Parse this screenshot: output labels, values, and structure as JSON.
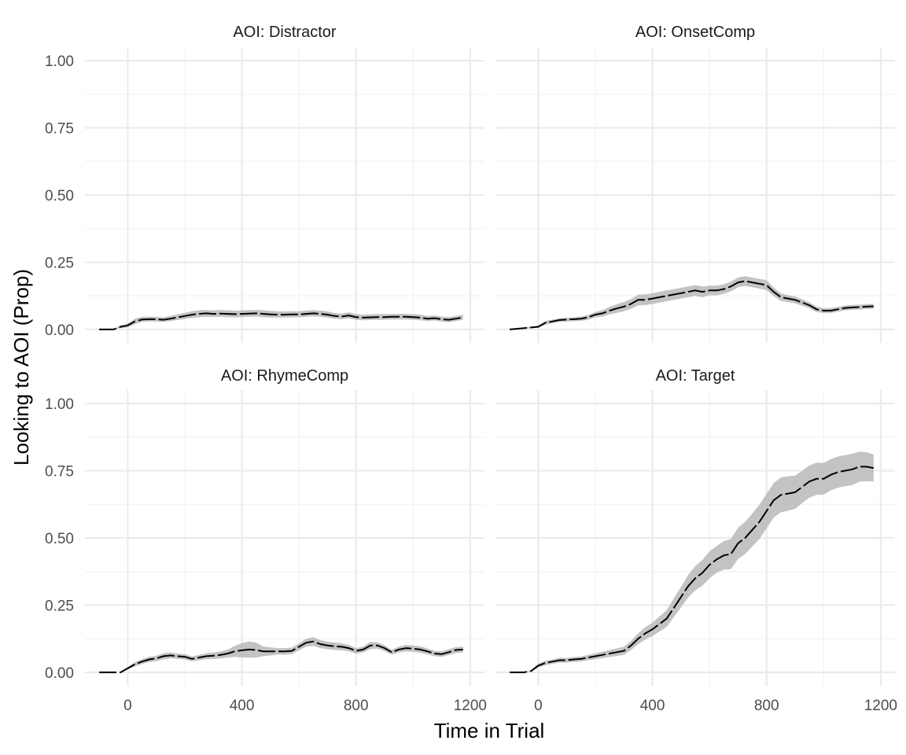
{
  "chart_data": {
    "type": "line",
    "xlabel": "Time in Trial",
    "ylabel": "Looking to AOI (Prop)",
    "xlim": [
      -100,
      1200
    ],
    "ylim": [
      0,
      1
    ],
    "x_ticks": [
      "0",
      "400",
      "800",
      "1200"
    ],
    "y_ticks": [
      "0.00",
      "0.25",
      "0.50",
      "0.75",
      "1.00"
    ],
    "grid": true,
    "ribbon": "confidence band (grey)",
    "colors": {
      "line": "#000000",
      "ribbon": "#bdbdbd",
      "grid": "#ebebeb"
    },
    "panels": [
      {
        "strip": "AOI:  Distractor",
        "x": [
          -100,
          -50,
          -25,
          0,
          25,
          50,
          75,
          100,
          125,
          150,
          175,
          200,
          225,
          250,
          275,
          300,
          325,
          350,
          375,
          400,
          425,
          450,
          475,
          500,
          525,
          550,
          575,
          600,
          625,
          650,
          675,
          700,
          725,
          750,
          775,
          800,
          825,
          850,
          875,
          900,
          925,
          950,
          975,
          1000,
          1025,
          1050,
          1075,
          1100,
          1125,
          1150,
          1175
        ],
        "y": [
          0,
          0,
          0.01,
          0.015,
          0.03,
          0.037,
          0.038,
          0.038,
          0.036,
          0.04,
          0.045,
          0.05,
          0.055,
          0.058,
          0.06,
          0.058,
          0.059,
          0.058,
          0.057,
          0.058,
          0.059,
          0.06,
          0.058,
          0.056,
          0.055,
          0.055,
          0.056,
          0.056,
          0.058,
          0.06,
          0.058,
          0.055,
          0.05,
          0.048,
          0.052,
          0.046,
          0.044,
          0.045,
          0.046,
          0.046,
          0.047,
          0.047,
          0.047,
          0.046,
          0.044,
          0.04,
          0.042,
          0.038,
          0.036,
          0.04,
          0.045
        ],
        "lower": [
          0,
          0,
          0.005,
          0.008,
          0.02,
          0.028,
          0.03,
          0.03,
          0.028,
          0.031,
          0.035,
          0.039,
          0.043,
          0.045,
          0.047,
          0.046,
          0.047,
          0.046,
          0.045,
          0.046,
          0.047,
          0.048,
          0.046,
          0.044,
          0.044,
          0.044,
          0.045,
          0.045,
          0.047,
          0.049,
          0.047,
          0.044,
          0.04,
          0.038,
          0.041,
          0.036,
          0.034,
          0.035,
          0.036,
          0.036,
          0.037,
          0.037,
          0.037,
          0.036,
          0.034,
          0.031,
          0.033,
          0.029,
          0.027,
          0.031,
          0.036
        ],
        "upper": [
          0,
          0,
          0.015,
          0.022,
          0.04,
          0.047,
          0.047,
          0.047,
          0.045,
          0.05,
          0.056,
          0.062,
          0.068,
          0.071,
          0.073,
          0.071,
          0.072,
          0.071,
          0.07,
          0.071,
          0.072,
          0.073,
          0.071,
          0.069,
          0.067,
          0.067,
          0.068,
          0.068,
          0.07,
          0.072,
          0.07,
          0.067,
          0.061,
          0.059,
          0.064,
          0.057,
          0.055,
          0.056,
          0.057,
          0.057,
          0.058,
          0.058,
          0.058,
          0.057,
          0.055,
          0.05,
          0.052,
          0.048,
          0.046,
          0.05,
          0.055
        ]
      },
      {
        "strip": "AOI:  OnsetComp",
        "x": [
          -100,
          -50,
          0,
          25,
          50,
          75,
          100,
          125,
          150,
          175,
          200,
          225,
          250,
          275,
          300,
          325,
          350,
          375,
          400,
          425,
          450,
          475,
          500,
          525,
          550,
          575,
          600,
          625,
          650,
          675,
          700,
          725,
          750,
          775,
          800,
          825,
          850,
          875,
          900,
          925,
          950,
          975,
          1000,
          1025,
          1050,
          1075,
          1100,
          1125,
          1150,
          1175
        ],
        "y": [
          0,
          0.005,
          0.01,
          0.025,
          0.03,
          0.035,
          0.037,
          0.038,
          0.04,
          0.045,
          0.055,
          0.06,
          0.07,
          0.078,
          0.085,
          0.095,
          0.11,
          0.11,
          0.115,
          0.12,
          0.125,
          0.13,
          0.135,
          0.14,
          0.145,
          0.14,
          0.145,
          0.145,
          0.15,
          0.16,
          0.175,
          0.18,
          0.175,
          0.17,
          0.165,
          0.14,
          0.12,
          0.115,
          0.11,
          0.1,
          0.09,
          0.075,
          0.07,
          0.07,
          0.075,
          0.08,
          0.082,
          0.083,
          0.085,
          0.086
        ],
        "lower": [
          0,
          0.003,
          0.006,
          0.018,
          0.023,
          0.028,
          0.03,
          0.031,
          0.032,
          0.036,
          0.045,
          0.048,
          0.056,
          0.062,
          0.068,
          0.077,
          0.09,
          0.09,
          0.095,
          0.1,
          0.105,
          0.11,
          0.115,
          0.12,
          0.125,
          0.12,
          0.127,
          0.127,
          0.132,
          0.142,
          0.157,
          0.162,
          0.157,
          0.152,
          0.147,
          0.124,
          0.106,
          0.102,
          0.097,
          0.088,
          0.079,
          0.065,
          0.061,
          0.061,
          0.066,
          0.071,
          0.073,
          0.074,
          0.076,
          0.077
        ],
        "upper": [
          0,
          0.007,
          0.014,
          0.032,
          0.037,
          0.042,
          0.044,
          0.045,
          0.048,
          0.054,
          0.065,
          0.072,
          0.084,
          0.094,
          0.102,
          0.113,
          0.13,
          0.13,
          0.135,
          0.14,
          0.145,
          0.15,
          0.155,
          0.16,
          0.165,
          0.16,
          0.163,
          0.163,
          0.168,
          0.178,
          0.193,
          0.198,
          0.193,
          0.188,
          0.183,
          0.156,
          0.134,
          0.128,
          0.123,
          0.112,
          0.101,
          0.085,
          0.079,
          0.079,
          0.084,
          0.089,
          0.091,
          0.092,
          0.094,
          0.095
        ]
      },
      {
        "strip": "AOI:  RhymeComp",
        "x": [
          -100,
          -50,
          -25,
          0,
          25,
          50,
          75,
          100,
          125,
          150,
          175,
          200,
          225,
          250,
          275,
          300,
          325,
          350,
          375,
          400,
          425,
          450,
          475,
          500,
          525,
          550,
          575,
          600,
          625,
          650,
          675,
          700,
          725,
          750,
          775,
          800,
          825,
          850,
          875,
          900,
          925,
          950,
          975,
          1000,
          1025,
          1050,
          1075,
          1100,
          1125,
          1150,
          1175
        ],
        "y": [
          0,
          0,
          0,
          0.015,
          0.03,
          0.04,
          0.048,
          0.052,
          0.06,
          0.063,
          0.06,
          0.058,
          0.05,
          0.055,
          0.06,
          0.062,
          0.065,
          0.07,
          0.078,
          0.082,
          0.085,
          0.083,
          0.078,
          0.078,
          0.078,
          0.078,
          0.08,
          0.095,
          0.11,
          0.115,
          0.105,
          0.1,
          0.097,
          0.095,
          0.09,
          0.08,
          0.085,
          0.1,
          0.1,
          0.09,
          0.075,
          0.085,
          0.09,
          0.088,
          0.085,
          0.078,
          0.07,
          0.068,
          0.075,
          0.083,
          0.085
        ],
        "lower": [
          0,
          0,
          0,
          0.01,
          0.022,
          0.031,
          0.038,
          0.042,
          0.049,
          0.052,
          0.05,
          0.048,
          0.041,
          0.045,
          0.049,
          0.05,
          0.052,
          0.055,
          0.058,
          0.055,
          0.055,
          0.055,
          0.06,
          0.063,
          0.066,
          0.066,
          0.068,
          0.082,
          0.095,
          0.099,
          0.09,
          0.086,
          0.083,
          0.082,
          0.078,
          0.07,
          0.074,
          0.087,
          0.088,
          0.079,
          0.066,
          0.074,
          0.078,
          0.076,
          0.073,
          0.067,
          0.06,
          0.058,
          0.064,
          0.072,
          0.074
        ],
        "upper": [
          0,
          0,
          0,
          0.02,
          0.038,
          0.049,
          0.058,
          0.062,
          0.071,
          0.074,
          0.07,
          0.068,
          0.059,
          0.065,
          0.071,
          0.074,
          0.078,
          0.085,
          0.098,
          0.109,
          0.115,
          0.111,
          0.096,
          0.093,
          0.09,
          0.09,
          0.092,
          0.108,
          0.125,
          0.131,
          0.12,
          0.114,
          0.111,
          0.108,
          0.102,
          0.09,
          0.096,
          0.113,
          0.112,
          0.101,
          0.084,
          0.096,
          0.102,
          0.1,
          0.097,
          0.089,
          0.08,
          0.078,
          0.086,
          0.094,
          0.096
        ]
      },
      {
        "strip": "AOI:  Target",
        "x": [
          -100,
          -50,
          -25,
          0,
          25,
          50,
          75,
          100,
          125,
          150,
          175,
          200,
          225,
          250,
          275,
          300,
          325,
          350,
          375,
          400,
          425,
          450,
          475,
          500,
          525,
          550,
          575,
          600,
          625,
          650,
          675,
          700,
          725,
          750,
          775,
          800,
          825,
          850,
          875,
          900,
          925,
          950,
          975,
          1000,
          1025,
          1050,
          1075,
          1100,
          1125,
          1150,
          1175
        ],
        "y": [
          0,
          0,
          0.005,
          0.025,
          0.035,
          0.04,
          0.045,
          0.045,
          0.048,
          0.05,
          0.055,
          0.06,
          0.065,
          0.07,
          0.075,
          0.08,
          0.1,
          0.125,
          0.145,
          0.16,
          0.18,
          0.2,
          0.24,
          0.28,
          0.32,
          0.35,
          0.37,
          0.4,
          0.42,
          0.435,
          0.44,
          0.48,
          0.5,
          0.53,
          0.56,
          0.6,
          0.64,
          0.66,
          0.665,
          0.67,
          0.69,
          0.71,
          0.72,
          0.72,
          0.735,
          0.745,
          0.75,
          0.755,
          0.765,
          0.765,
          0.76
        ],
        "lower": [
          0,
          0,
          0.002,
          0.018,
          0.027,
          0.032,
          0.036,
          0.036,
          0.039,
          0.041,
          0.045,
          0.049,
          0.053,
          0.057,
          0.061,
          0.065,
          0.083,
          0.105,
          0.122,
          0.135,
          0.152,
          0.169,
          0.205,
          0.242,
          0.278,
          0.305,
          0.322,
          0.35,
          0.37,
          0.382,
          0.384,
          0.422,
          0.44,
          0.469,
          0.496,
          0.536,
          0.576,
          0.595,
          0.601,
          0.608,
          0.63,
          0.65,
          0.66,
          0.661,
          0.677,
          0.687,
          0.692,
          0.697,
          0.709,
          0.711,
          0.71
        ],
        "upper": [
          0,
          0,
          0.008,
          0.032,
          0.043,
          0.048,
          0.054,
          0.054,
          0.057,
          0.059,
          0.065,
          0.071,
          0.077,
          0.083,
          0.089,
          0.095,
          0.117,
          0.145,
          0.168,
          0.185,
          0.208,
          0.231,
          0.275,
          0.318,
          0.362,
          0.395,
          0.418,
          0.45,
          0.47,
          0.488,
          0.496,
          0.538,
          0.56,
          0.591,
          0.624,
          0.664,
          0.704,
          0.725,
          0.729,
          0.732,
          0.75,
          0.77,
          0.78,
          0.779,
          0.793,
          0.803,
          0.808,
          0.813,
          0.821,
          0.819,
          0.81
        ]
      }
    ]
  }
}
